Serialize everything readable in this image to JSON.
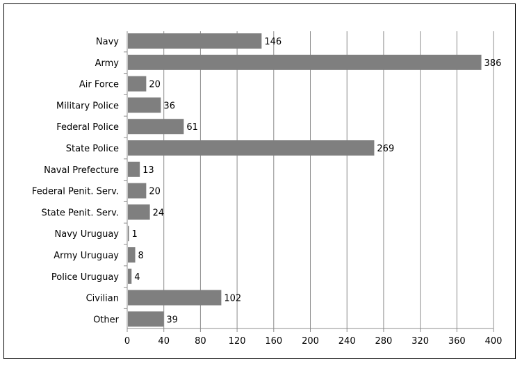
{
  "chart_data": {
    "type": "bar",
    "orientation": "horizontal",
    "title": "",
    "xlabel": "",
    "ylabel": "",
    "categories": [
      "Navy",
      "Army",
      "Air Force",
      "Military Police",
      "Federal Police",
      "State Police",
      "Naval Prefecture",
      "Federal Penit. Serv.",
      "State Penit. Serv.",
      "Navy Uruguay",
      "Army Uruguay",
      "Police Uruguay",
      "Civilian",
      "Other"
    ],
    "values": [
      146,
      386,
      20,
      36,
      61,
      269,
      13,
      20,
      24,
      1,
      8,
      4,
      102,
      39
    ],
    "xlim": [
      0,
      400
    ],
    "xticks": [
      0,
      40,
      80,
      120,
      160,
      200,
      240,
      280,
      320,
      360,
      400
    ],
    "grid": "vertical",
    "legend": "none",
    "colors": {
      "bar": "#7f7f7f",
      "grid": "#8c8c8c",
      "axis": "#8c8c8c",
      "text": "#000000"
    }
  }
}
